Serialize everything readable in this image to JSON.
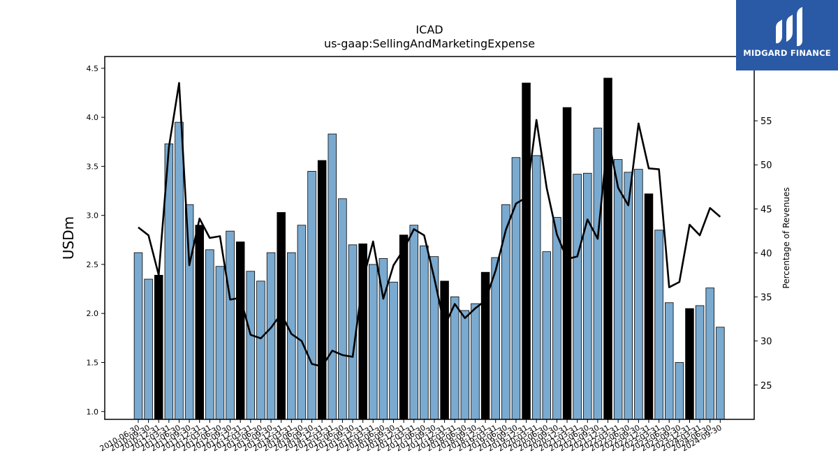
{
  "brand": {
    "name": "MIDGARD FINANCE",
    "bg_color": "#2a5aa6"
  },
  "chart_data": {
    "type": "bar",
    "title": "ICAD",
    "subtitle": "us-gaap:SellingAndMarketingExpense",
    "ylabel": "USDm",
    "y2label": "Percentage of Revenues",
    "ylim": [
      0.92,
      4.62
    ],
    "y2lim": [
      21.1,
      62.3
    ],
    "yticks": [
      "1.0",
      "1.5",
      "2.0",
      "2.5",
      "3.0",
      "3.5",
      "4.0",
      "4.5"
    ],
    "y2ticks": [
      "25",
      "30",
      "35",
      "40",
      "45",
      "50",
      "55"
    ],
    "colors": {
      "bar": "#7aaad0",
      "highlight": "#000000",
      "line": "#000000"
    },
    "categories": [
      "2010-06-30",
      "2010-09-30",
      "2010-12-31",
      "2011-03-31",
      "2011-06-30",
      "2011-09-30",
      "2011-12-31",
      "2012-03-31",
      "2012-06-30",
      "2012-09-30",
      "2012-12-31",
      "2013-03-31",
      "2013-06-30",
      "2013-09-30",
      "2013-12-31",
      "2014-03-31",
      "2014-06-30",
      "2014-09-30",
      "2014-12-31",
      "2015-03-31",
      "2015-06-30",
      "2015-09-30",
      "2015-12-31",
      "2016-03-31",
      "2016-06-30",
      "2016-09-30",
      "2016-12-31",
      "2017-03-31",
      "2017-06-30",
      "2017-09-30",
      "2017-12-31",
      "2018-03-31",
      "2018-06-30",
      "2018-09-30",
      "2018-12-31",
      "2019-03-31",
      "2019-06-30",
      "2019-09-30",
      "2019-12-31",
      "2020-03-31",
      "2020-06-30",
      "2020-09-30",
      "2020-12-31",
      "2021-03-31",
      "2021-06-30",
      "2021-09-30",
      "2021-12-31",
      "2022-03-31",
      "2022-06-30",
      "2022-09-30",
      "2022-12-31",
      "2023-03-31",
      "2023-06-30",
      "2023-09-30",
      "2023-12-31",
      "2024-03-31",
      "2024-06-30",
      "2024-09-30"
    ],
    "tick_labels": [
      "2010-06-30",
      "2010-09-30",
      "2010-12-31",
      "2011-03-31",
      "2011-06-30",
      "2011-09-30",
      "2011-12-31",
      "2012-03-31",
      "2012-06-30",
      "2012-09-30",
      "2012-12-31",
      "2013-03-31",
      "2013-06-30",
      "2013-09-30",
      "2013-12-31",
      "2014-03-31",
      "2014-06-30",
      "2014-09-30",
      "2014-12-31",
      "2015-03-31",
      "2015-06-30",
      "2015-09-30",
      "2015-12-31",
      "2016-03-31",
      "2016-06-30",
      "2016-09-30",
      "2016-12-31",
      "2017-03-31",
      "2017-06-30",
      "2017-09-30",
      "2017-12-31",
      "2018-03-31",
      "2018-06-30",
      "2018-09-30",
      "2018-12-31",
      "2019-03-31",
      "2019-06-30",
      "2019-09-30",
      "2019-12-31",
      "2020-03-31",
      "2020-06-30",
      "2020-09-30",
      "2020-12-31",
      "2021-03-31",
      "2021-06-30",
      "2021-09-30",
      "2021-12-31",
      "2022-03-31",
      "2022-06-30",
      "2022-09-30",
      "2022-12-31",
      "2023-03-31",
      "2023-06-30",
      "2023-09-30",
      "2023-12-31",
      "2024-03-31",
      "2024-06-30",
      "2024-09-30"
    ],
    "values": [
      2.62,
      2.35,
      2.39,
      3.73,
      3.95,
      3.11,
      2.9,
      2.65,
      2.48,
      2.84,
      2.73,
      2.43,
      2.33,
      2.62,
      3.03,
      2.62,
      2.9,
      3.45,
      3.56,
      3.83,
      3.17,
      2.7,
      2.71,
      2.5,
      2.56,
      2.32,
      2.8,
      2.9,
      2.69,
      2.58,
      2.33,
      2.17,
      2.03,
      2.1,
      2.42,
      2.57,
      3.11,
      3.59,
      4.35,
      3.61,
      2.63,
      2.98,
      4.1,
      3.42,
      3.43,
      3.89,
      4.4,
      3.57,
      3.44,
      3.47,
      3.22,
      2.85,
      2.11,
      1.5,
      2.05,
      2.08,
      2.26,
      1.86
    ],
    "highlight": [
      false,
      false,
      true,
      false,
      false,
      false,
      true,
      false,
      false,
      false,
      true,
      false,
      false,
      false,
      true,
      false,
      false,
      false,
      true,
      false,
      false,
      false,
      true,
      false,
      false,
      false,
      true,
      false,
      false,
      false,
      true,
      false,
      false,
      false,
      true,
      false,
      false,
      false,
      true,
      false,
      false,
      false,
      true,
      false,
      false,
      false,
      true,
      false,
      false,
      false,
      true,
      false,
      false,
      false,
      true,
      false,
      false,
      false
    ],
    "line_values": [
      42.9,
      42.0,
      37.5,
      52.0,
      59.3,
      38.6,
      43.9,
      41.7,
      41.9,
      34.7,
      34.9,
      30.7,
      30.3,
      31.5,
      33.1,
      30.8,
      30.0,
      27.4,
      27.1,
      28.9,
      28.4,
      28.2,
      36.9,
      41.3,
      34.8,
      38.6,
      40.4,
      42.7,
      42.0,
      37.1,
      31.7,
      34.2,
      32.6,
      33.7,
      34.6,
      38.0,
      42.6,
      45.6,
      46.3,
      55.1,
      47.4,
      42.1,
      39.3,
      39.6,
      43.8,
      41.6,
      53.2,
      47.4,
      45.4,
      54.7,
      49.6,
      49.5,
      36.1,
      36.7,
      43.2,
      42.0,
      45.1,
      44.1
    ]
  }
}
